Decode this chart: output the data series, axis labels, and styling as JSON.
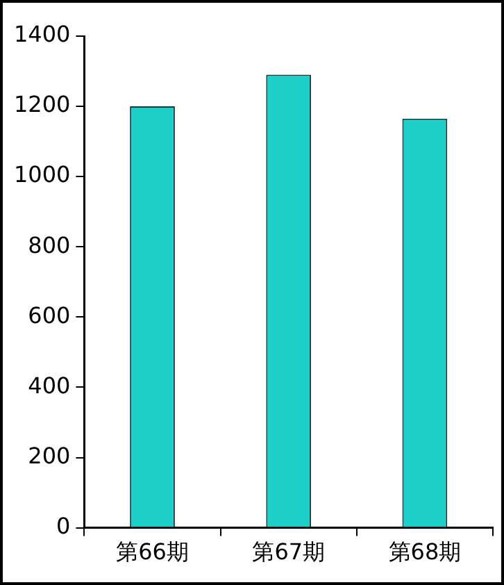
{
  "chart_data": {
    "type": "bar",
    "categories": [
      "第66期",
      "第67期",
      "第68期"
    ],
    "values": [
      1200,
      1290,
      1165
    ],
    "color": "#1ccfc9",
    "ylim": [
      0,
      1400
    ],
    "yticks": [
      0,
      200,
      400,
      600,
      800,
      1000,
      1200,
      1400
    ],
    "grid": false,
    "legend": false
  }
}
